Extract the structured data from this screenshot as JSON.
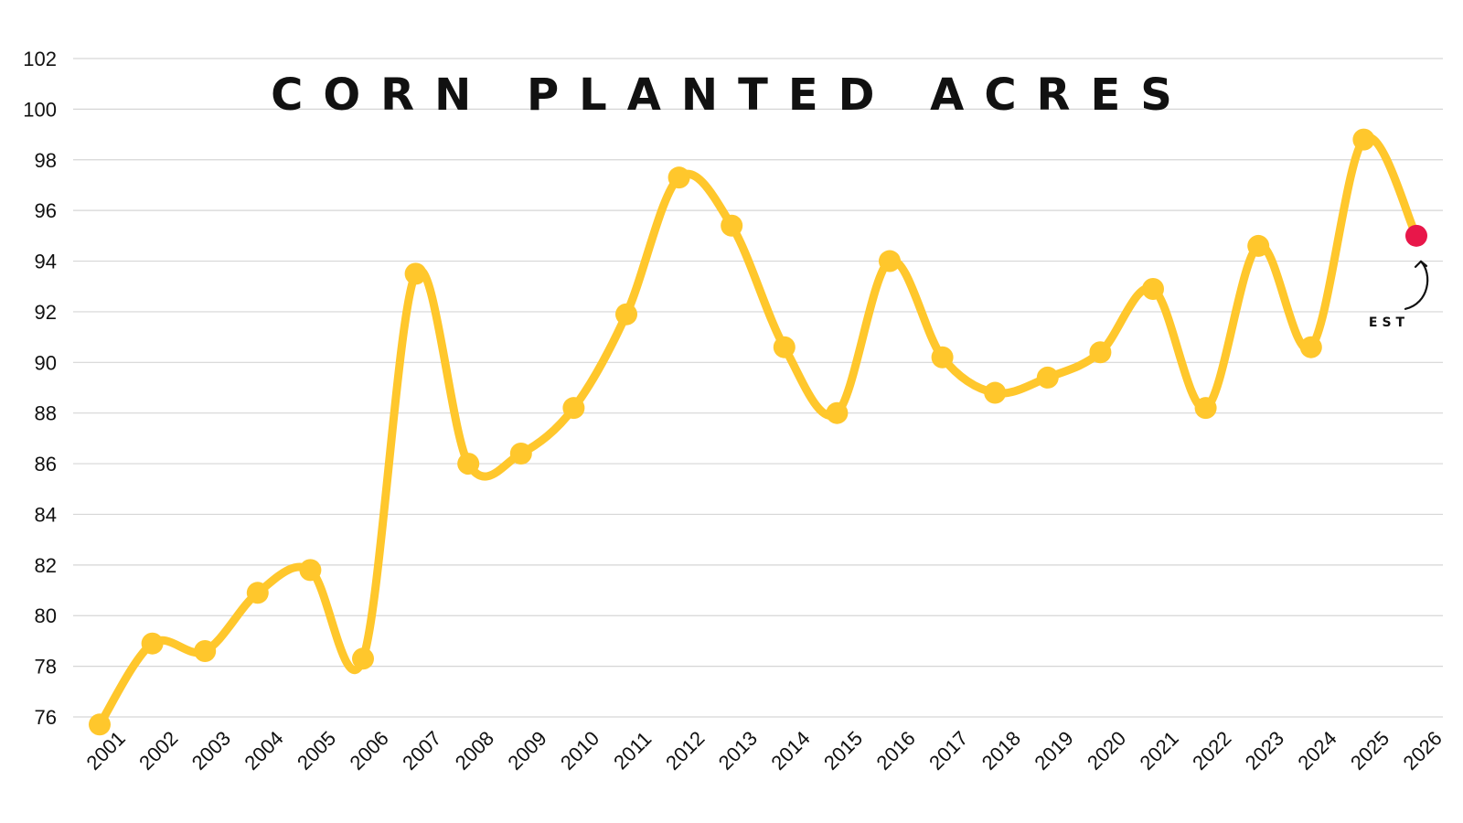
{
  "chart_data": {
    "type": "line",
    "title": "CORN PLANTED ACRES",
    "xlabel": "",
    "ylabel": "",
    "x": [
      "2001",
      "2002",
      "2003",
      "2004",
      "2005",
      "2006",
      "2007",
      "2008",
      "2009",
      "2010",
      "2011",
      "2012",
      "2013",
      "2014",
      "2015",
      "2016",
      "2017",
      "2018",
      "2019",
      "2020",
      "2021",
      "2022",
      "2023",
      "2024",
      "2025",
      "2026"
    ],
    "series": [
      {
        "values": [
          75.7,
          78.9,
          78.6,
          80.9,
          81.8,
          78.3,
          93.5,
          86.0,
          86.4,
          88.2,
          91.9,
          97.3,
          95.4,
          90.6,
          88.0,
          94.0,
          90.2,
          88.8,
          89.4,
          90.4,
          92.9,
          88.2,
          94.6,
          90.6,
          98.8,
          95.0
        ]
      }
    ],
    "ylim": [
      75,
      102
    ],
    "yticks": [
      76,
      78,
      80,
      82,
      84,
      86,
      88,
      90,
      92,
      94,
      96,
      98,
      100,
      102
    ],
    "grid": true,
    "line_color": "#FFC72C",
    "highlight_color": "#E8174A",
    "annotation": {
      "label": "EST",
      "target": "2026"
    }
  }
}
